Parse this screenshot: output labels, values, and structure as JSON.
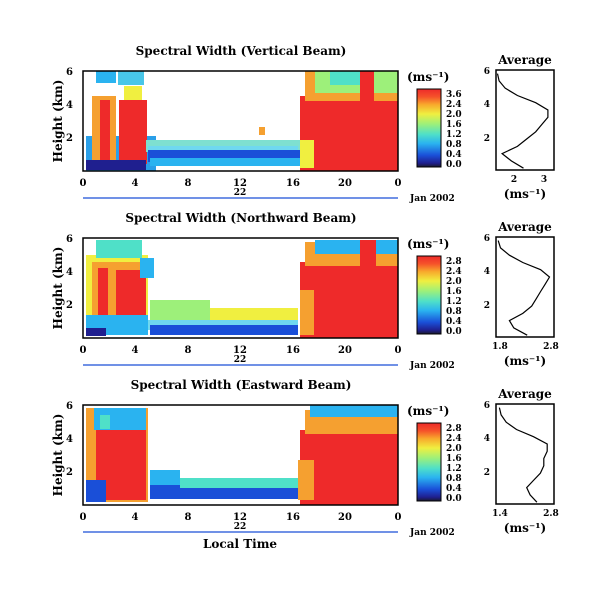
{
  "panels": [
    {
      "title": "Spectral Width (Vertical Beam)",
      "ylabel": "Height (km)",
      "yticks": [
        "6",
        "4",
        "2"
      ],
      "xticks": [
        "0",
        "4",
        "8",
        "12",
        "16",
        "20",
        "0"
      ],
      "date_tick": "22",
      "date_label": "Jan 2002",
      "unit_label": "(ms⁻¹)",
      "colorbar_ticks": [
        "3.6",
        "2.4",
        "2.0",
        "1.6",
        "1.2",
        "0.8",
        "0.4",
        "0.0"
      ],
      "avg_title": "Average",
      "avg_yticks": [
        "6",
        "4",
        "2"
      ],
      "avg_xticks": [
        "2",
        "3"
      ],
      "avg_xlabel": "(ms⁻¹)"
    },
    {
      "title": "Spectral Width (Northward Beam)",
      "ylabel": "Height (km)",
      "yticks": [
        "6",
        "4",
        "2"
      ],
      "xticks": [
        "0",
        "4",
        "8",
        "12",
        "16",
        "20",
        "0"
      ],
      "date_tick": "22",
      "date_label": "Jan 2002",
      "unit_label": "(ms⁻¹)",
      "colorbar_ticks": [
        "2.8",
        "2.4",
        "2.0",
        "1.6",
        "1.2",
        "0.8",
        "0.4",
        "0.0"
      ],
      "avg_title": "Average",
      "avg_yticks": [
        "6",
        "4",
        "2"
      ],
      "avg_xticks": [
        "1.8",
        "2.8"
      ],
      "avg_xlabel": "(ms⁻¹)"
    },
    {
      "title": "Spectral Width (Eastward Beam)",
      "ylabel": "Height (km)",
      "yticks": [
        "6",
        "4",
        "2"
      ],
      "xticks": [
        "0",
        "4",
        "8",
        "12",
        "16",
        "20",
        "0"
      ],
      "date_tick": "22",
      "date_label": "Jan 2002",
      "unit_label": "(ms⁻¹)",
      "colorbar_ticks": [
        "2.8",
        "2.4",
        "2.0",
        "1.6",
        "1.2",
        "0.8",
        "0.4",
        "0.0"
      ],
      "avg_title": "Average",
      "avg_yticks": [
        "6",
        "4",
        "2"
      ],
      "avg_xticks": [
        "1.4",
        "2.8"
      ],
      "avg_xlabel": "(ms⁻¹)"
    }
  ],
  "xlabel": "Local Time",
  "chart_data": [
    {
      "type": "heatmap",
      "title": "Spectral Width (Vertical Beam)",
      "xlabel": "Local Time",
      "ylabel": "Height (km)",
      "xlim": [
        0,
        24
      ],
      "ylim": [
        0.5,
        6
      ],
      "colorbar": {
        "label": "(ms⁻¹)",
        "range": [
          0.0,
          3.6
        ]
      },
      "profile": {
        "title": "Average",
        "xlabel": "(ms⁻¹)",
        "xlim": [
          1.3,
          3.2
        ],
        "ylim": [
          0.5,
          6
        ],
        "height": [
          0.6,
          1.0,
          1.4,
          1.8,
          2.2,
          2.6,
          3.0,
          3.4,
          3.8,
          4.2,
          4.6,
          5.0,
          5.4,
          5.8
        ],
        "width": [
          2.2,
          1.8,
          1.5,
          2.0,
          2.3,
          2.6,
          2.8,
          3.0,
          3.0,
          2.6,
          2.0,
          1.6,
          1.4,
          1.35
        ]
      }
    },
    {
      "type": "heatmap",
      "title": "Spectral Width (Northward Beam)",
      "xlabel": "Local Time",
      "ylabel": "Height (km)",
      "xlim": [
        0,
        24
      ],
      "ylim": [
        0.5,
        6
      ],
      "colorbar": {
        "label": "(ms⁻¹)",
        "range": [
          0.0,
          2.8
        ]
      },
      "profile": {
        "title": "Average",
        "xlabel": "(ms⁻¹)",
        "xlim": [
          1.6,
          2.9
        ],
        "ylim": [
          0.5,
          6
        ],
        "height": [
          0.6,
          1.0,
          1.4,
          1.8,
          2.2,
          2.6,
          3.0,
          3.4,
          3.8,
          4.2,
          4.6,
          5.0,
          5.4,
          5.8
        ],
        "width": [
          2.3,
          2.0,
          1.9,
          2.2,
          2.4,
          2.5,
          2.6,
          2.7,
          2.8,
          2.6,
          2.2,
          1.9,
          1.7,
          1.65
        ]
      }
    },
    {
      "type": "heatmap",
      "title": "Spectral Width (Eastward Beam)",
      "xlabel": "Local Time",
      "ylabel": "Height (km)",
      "xlim": [
        0,
        24
      ],
      "ylim": [
        0.5,
        6
      ],
      "colorbar": {
        "label": "(ms⁻¹)",
        "range": [
          0.0,
          2.8
        ]
      },
      "profile": {
        "title": "Average",
        "xlabel": "(ms⁻¹)",
        "xlim": [
          1.2,
          2.9
        ],
        "ylim": [
          0.5,
          6
        ],
        "height": [
          0.6,
          1.0,
          1.4,
          1.8,
          2.2,
          2.6,
          3.0,
          3.4,
          3.8,
          4.2,
          4.6,
          5.0,
          5.4,
          5.8
        ],
        "width": [
          2.4,
          2.2,
          2.1,
          2.3,
          2.5,
          2.6,
          2.6,
          2.7,
          2.7,
          2.3,
          1.8,
          1.5,
          1.35,
          1.3
        ]
      }
    }
  ]
}
